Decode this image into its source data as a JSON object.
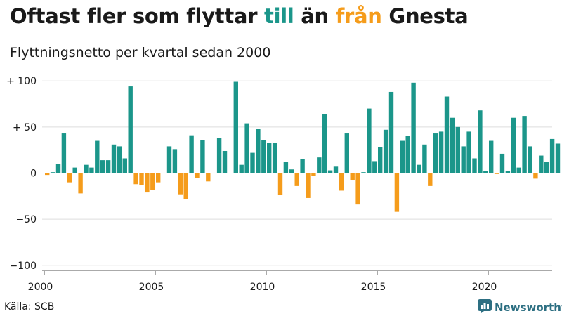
{
  "title": {
    "part1": "Oftast fler som flyttar ",
    "till": "till",
    "part2": " än ",
    "fran": "från",
    "part3": " Gnesta"
  },
  "subtitle": "Flyttningsnetto per kvartal sedan 2000",
  "source": "Källa: SCB",
  "brand": {
    "name": "Newsworthy",
    "icon": "newsworthy-logo-icon"
  },
  "colors": {
    "positive": "#1b968a",
    "negative": "#f59c1b",
    "grid": "#dddddd",
    "axis": "#aaaaaa",
    "text": "#1a1a1a",
    "brand": "#2d6f82"
  },
  "chart_data": {
    "type": "bar",
    "x_start": "2000 Q1",
    "x_ticks": [
      "2000",
      "2005",
      "2010",
      "2015",
      "2020"
    ],
    "y_ticks": [
      "+ 100",
      "+  50",
      "0",
      "−50",
      "−100"
    ],
    "y_tick_values": [
      100,
      50,
      0,
      -50,
      -100
    ],
    "ylim": [
      -100,
      100
    ],
    "grid": true,
    "values": [
      -2,
      1,
      10,
      43,
      -10,
      6,
      -22,
      9,
      6,
      35,
      14,
      14,
      31,
      29,
      16,
      94,
      -12,
      -13,
      -21,
      -18,
      -10,
      0,
      29,
      26,
      -23,
      -28,
      41,
      -5,
      36,
      -9,
      0,
      38,
      24,
      0,
      99,
      9,
      54,
      22,
      48,
      36,
      33,
      33,
      -24,
      12,
      4,
      -14,
      15,
      -27,
      -3,
      17,
      64,
      3,
      7,
      -19,
      43,
      -8,
      -34,
      1,
      70,
      13,
      28,
      47,
      88,
      -42,
      35,
      40,
      98,
      9,
      31,
      -14,
      43,
      45,
      83,
      60,
      50,
      29,
      45,
      16,
      68,
      2,
      35,
      -1,
      21,
      2,
      60,
      6,
      62,
      29,
      -6,
      19,
      12,
      37,
      32
    ]
  }
}
